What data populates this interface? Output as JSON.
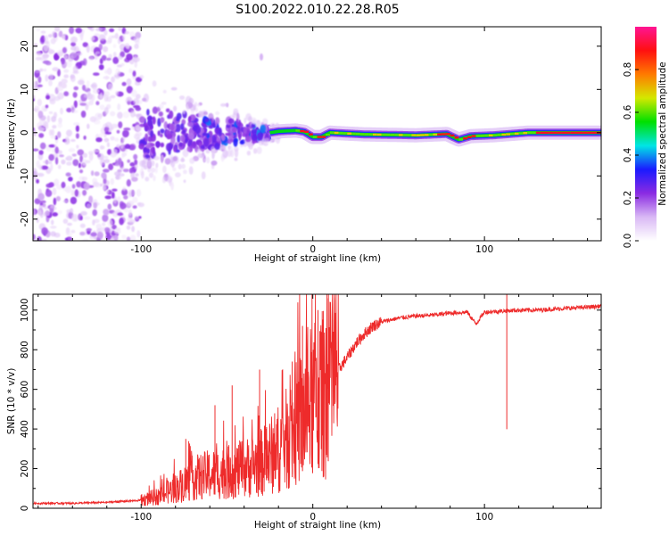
{
  "title": "S100.2022.010.22.28.R05",
  "chart_data": [
    {
      "type": "heatmap",
      "xlabel": "Height of straight line (km)",
      "ylabel": "Frequency (Hz)",
      "xlim": [
        -163,
        168
      ],
      "ylim": [
        -25,
        24.5
      ],
      "x_ticks": [
        -100,
        0,
        100
      ],
      "y_ticks": [
        -20,
        -10,
        0,
        10,
        20
      ],
      "colorbar": {
        "label": "Normalized spectral amplitude",
        "range": [
          0,
          1
        ],
        "ticks": [
          0.0,
          0.2,
          0.4,
          0.6,
          0.8
        ],
        "colormap": [
          "#ffffff",
          "#d9b8f5",
          "#8a2be2",
          "#1a1aff",
          "#00e5e5",
          "#00e000",
          "#d4e800",
          "#ff7a00",
          "#ff1010",
          "#ff1493"
        ]
      },
      "regions": [
        {
          "x_range": [
            -163,
            -100
          ],
          "freq_range": [
            -25,
            24.5
          ],
          "amplitude": 0.15,
          "character": "scattered noise"
        },
        {
          "x_range": [
            -100,
            -20
          ],
          "freq_range": [
            -15,
            10
          ],
          "amplitude": 0.3,
          "character": "broadening signal"
        },
        {
          "x_range": [
            -20,
            168
          ],
          "freq_range": [
            -1,
            1
          ],
          "amplitude": 0.9,
          "character": "narrow carrier"
        }
      ],
      "carrier_points": [
        {
          "x": -25,
          "y": 0.0
        },
        {
          "x": -20,
          "y": 0.3
        },
        {
          "x": -10,
          "y": 0.5
        },
        {
          "x": -5,
          "y": 0.2
        },
        {
          "x": 0,
          "y": -1.0
        },
        {
          "x": 5,
          "y": -1.0
        },
        {
          "x": 10,
          "y": 0.0
        },
        {
          "x": 30,
          "y": -0.4
        },
        {
          "x": 60,
          "y": -0.6
        },
        {
          "x": 78,
          "y": -0.3
        },
        {
          "x": 85,
          "y": -1.6
        },
        {
          "x": 92,
          "y": -0.8
        },
        {
          "x": 105,
          "y": -0.6
        },
        {
          "x": 125,
          "y": 0.0
        },
        {
          "x": 168,
          "y": 0.0
        }
      ]
    },
    {
      "type": "line",
      "xlabel": "Height of straight line (km)",
      "ylabel": "SNR (10 * v/v)",
      "xlim": [
        -163,
        168
      ],
      "ylim": [
        0,
        1080
      ],
      "x_ticks": [
        -100,
        0,
        100
      ],
      "y_ticks": [
        0,
        200,
        400,
        600,
        800,
        1000
      ],
      "series": [
        {
          "color": "#ee2b2b",
          "x": [
            -163,
            -140,
            -120,
            -100,
            -90,
            -80,
            -70,
            -60,
            -50,
            -40,
            -30,
            -25,
            -20,
            -15,
            -10,
            -5,
            0,
            5,
            10,
            15,
            20,
            25,
            30,
            35,
            40,
            50,
            60,
            70,
            80,
            90,
            95,
            100,
            110,
            120,
            130,
            140,
            150,
            160,
            168
          ],
          "y": [
            25,
            25,
            30,
            40,
            60,
            100,
            150,
            170,
            180,
            200,
            230,
            260,
            300,
            350,
            420,
            480,
            540,
            570,
            600,
            700,
            760,
            830,
            880,
            920,
            940,
            960,
            970,
            975,
            985,
            990,
            930,
            990,
            995,
            1000,
            1000,
            1005,
            1010,
            1015,
            1020
          ]
        }
      ],
      "spikes": [
        {
          "x": -74,
          "y": 350
        },
        {
          "x": -57,
          "y": 520
        },
        {
          "x": -47,
          "y": 620
        },
        {
          "x": -31,
          "y": 700
        },
        {
          "x": -12,
          "y": 740
        },
        {
          "x": -6,
          "y": 920
        },
        {
          "x": 3,
          "y": 1000
        },
        {
          "x": 9,
          "y": 1060
        },
        {
          "x": 113,
          "y": 1080
        }
      ]
    }
  ]
}
